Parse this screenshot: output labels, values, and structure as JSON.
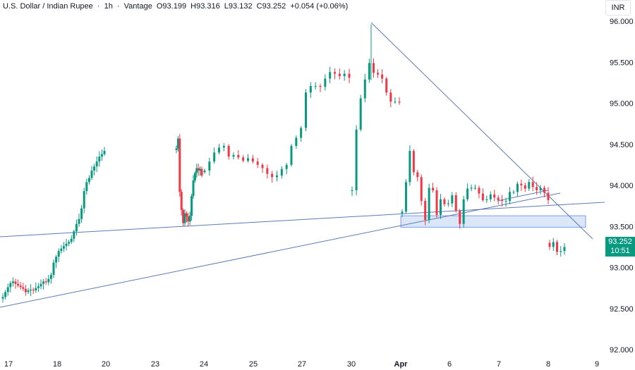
{
  "header": {
    "symbol": "U.S. Dollar / Indian Rupee",
    "interval": "1h",
    "source": "Vantage",
    "ohlc_open": "O93.199",
    "ohlc_high": "H93.316",
    "ohlc_low": "L93.132",
    "ohlc_close": "C93.252",
    "change": "+0.054 (+0.06%)"
  },
  "currency": "INR",
  "price_tag": {
    "price": "93.252",
    "countdown": "10:51"
  },
  "colors": {
    "up": "#089981",
    "down": "#f23645",
    "line": "#5b7bb5",
    "zone_fill": "#dbe6f7"
  },
  "chart_data": {
    "type": "candlestick",
    "y_axis": {
      "min": 92.0,
      "max": 96.0,
      "ticks": [
        "96.000",
        "95.500",
        "95.000",
        "94.500",
        "94.000",
        "93.500",
        "93.000",
        "92.500",
        "92.000"
      ]
    },
    "x_axis": {
      "labels": [
        "17",
        "18",
        "20",
        "23",
        "24",
        "25",
        "27",
        "30",
        "Apr",
        "6",
        "7",
        "8",
        "9"
      ]
    },
    "series": [
      {
        "segment": "17-20",
        "closes": [
          92.64,
          92.7,
          92.76,
          92.81,
          92.83,
          92.8,
          92.78,
          92.76,
          92.74,
          92.7,
          92.72,
          92.73,
          92.72,
          92.75,
          92.77,
          92.8,
          92.83,
          92.82,
          92.86,
          92.91,
          93.06,
          93.13,
          93.2,
          93.23,
          93.26,
          93.29,
          93.31,
          93.35,
          93.44,
          93.53,
          93.59,
          93.72,
          93.93,
          94.04,
          94.09,
          94.18,
          94.23,
          94.29,
          94.35,
          94.38,
          94.42
        ]
      },
      {
        "segment": "23-24",
        "closes": [
          94.45,
          94.57,
          93.92,
          93.7,
          93.54,
          93.66,
          93.62,
          93.56,
          93.63,
          93.87,
          94.06,
          94.15,
          94.21,
          94.18,
          94.2,
          94.12
        ]
      },
      {
        "segment": "25-27",
        "closes": [
          94.18,
          94.29,
          94.4,
          94.46,
          94.48,
          94.35,
          94.37,
          94.34,
          94.3,
          94.33,
          94.29,
          94.25,
          94.21,
          94.14,
          94.1,
          94.12,
          94.2,
          94.25,
          94.48,
          94.58,
          94.7,
          95.13,
          95.21,
          95.21,
          95.2,
          95.3,
          95.38,
          95.36,
          95.33,
          95.36,
          95.31
        ]
      },
      {
        "segment": "30",
        "closes": [
          93.94,
          94.68,
          95.06,
          95.29,
          95.49,
          95.37,
          95.35,
          95.3,
          95.13,
          95.02,
          95.02,
          95.01
        ]
      },
      {
        "segment": "Apr-8",
        "closes": [
          93.68,
          94.04,
          94.42,
          94.16,
          94.1,
          93.81,
          93.58,
          93.97,
          93.94,
          93.64,
          93.83,
          93.77,
          93.78,
          93.88,
          93.69,
          93.53,
          93.83,
          93.96,
          93.97,
          93.97,
          93.9,
          93.82,
          93.83,
          93.89,
          93.85,
          93.82,
          93.81,
          93.81,
          93.92,
          93.92,
          94.02,
          94.0,
          93.96,
          94.04,
          93.98,
          93.94,
          93.97,
          93.91,
          93.82
        ]
      },
      {
        "segment": "8-late",
        "closes": [
          93.25,
          93.31,
          93.19,
          93.2,
          93.25
        ]
      }
    ],
    "annotations": {
      "triangle_apex_price": 95.96,
      "support_zone": [
        93.49,
        93.63
      ]
    }
  }
}
